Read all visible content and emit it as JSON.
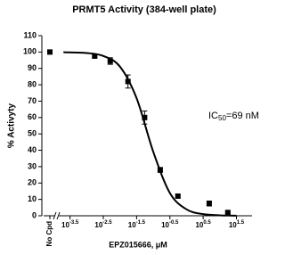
{
  "chart_data": {
    "type": "scatter",
    "title": "PRMT5 Activity (384-well plate)",
    "x_label": "EPZ015666, μM",
    "y_label": "% Activyty",
    "annotation": "IC50=69 nM",
    "log_x": true,
    "color": "#000000",
    "no_compound": {
      "label": "No Cpd",
      "value": 100,
      "error": 0.5
    },
    "x": [
      0.00174,
      0.0051,
      0.0174,
      0.055,
      0.162,
      0.55,
      4.8,
      17.4
    ],
    "values": [
      97.5,
      94.5,
      82,
      60,
      28,
      12,
      7.5,
      2
    ],
    "errors": [
      0.8,
      2,
      4,
      4,
      1.5,
      0.8,
      1.5,
      0.8
    ],
    "curve": {
      "x": [
        0.0002,
        0.000316,
        0.001,
        0.00316,
        0.01,
        0.0316,
        0.1,
        0.316,
        1,
        3.16,
        10,
        31.6
      ],
      "values": [
        99.9,
        99.8,
        99.4,
        97.6,
        91.1,
        71.8,
        39.1,
        13.9,
        3.9,
        1.0,
        0.3,
        0.06
      ]
    },
    "xlim": [
      0.000145,
      93
    ],
    "ylim": [
      0,
      110
    ],
    "xticks": [
      {
        "value": 0.000316,
        "label": "10-3.5"
      },
      {
        "value": 0.00316,
        "label": "10-2.5"
      },
      {
        "value": 0.0316,
        "label": "10-1.5"
      },
      {
        "value": 0.316,
        "label": "10-0.5"
      },
      {
        "value": 3.16,
        "label": "100.5"
      },
      {
        "value": 31.6,
        "label": "101.5"
      }
    ],
    "yticks": [
      0,
      10,
      20,
      30,
      40,
      50,
      60,
      70,
      80,
      90,
      100,
      110
    ]
  }
}
